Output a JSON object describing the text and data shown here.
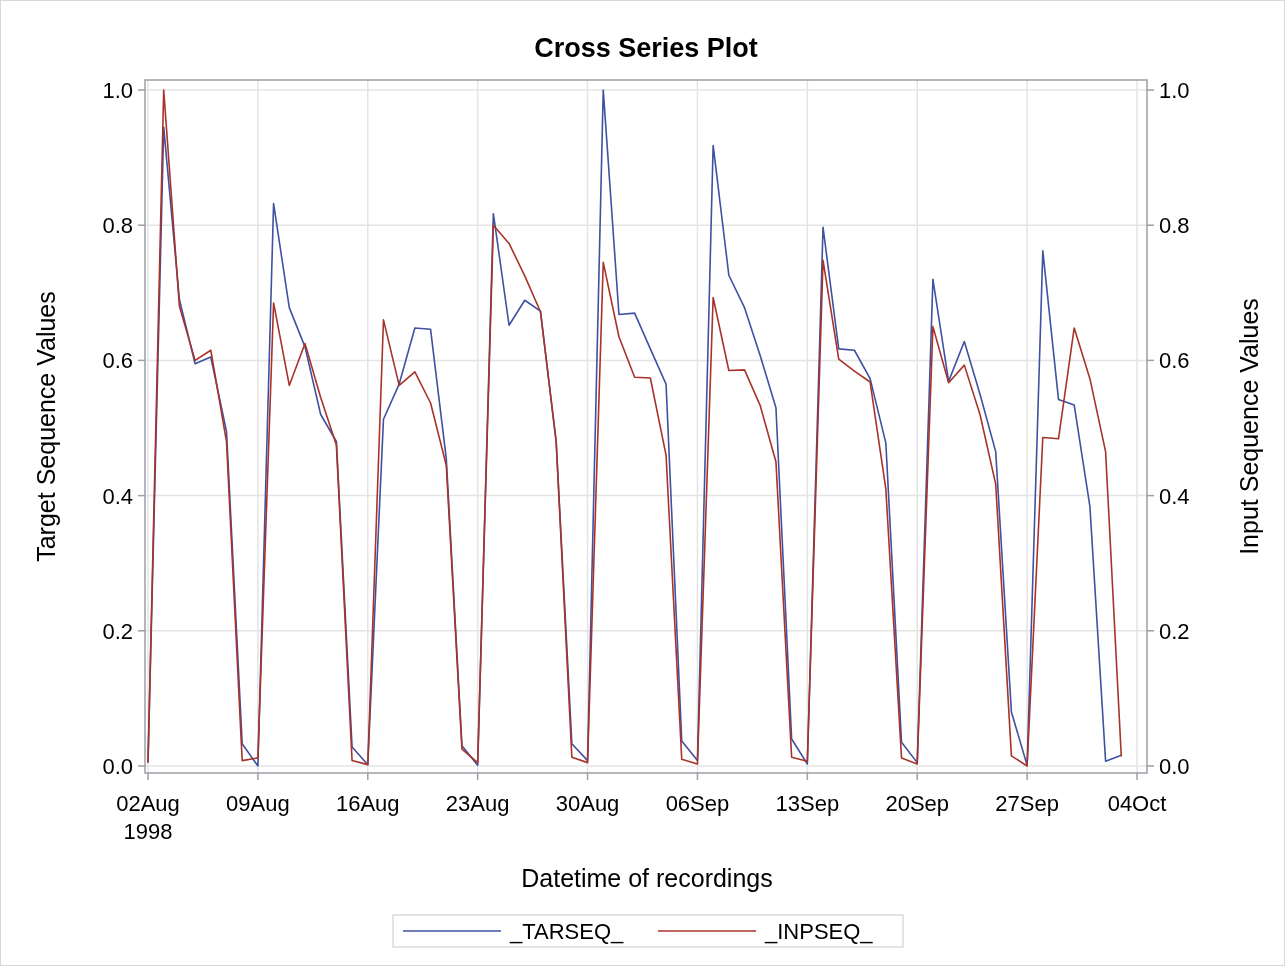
{
  "chart_data": {
    "type": "line",
    "title": "Cross Series Plot",
    "xlabel": "Datetime of recordings",
    "ylabel": "Target Sequence Values",
    "y2label": "Input Sequence Values",
    "x": [
      "1998-08-02",
      "1998-08-03",
      "1998-08-04",
      "1998-08-05",
      "1998-08-06",
      "1998-08-07",
      "1998-08-08",
      "1998-08-09",
      "1998-08-10",
      "1998-08-11",
      "1998-08-12",
      "1998-08-13",
      "1998-08-14",
      "1998-08-15",
      "1998-08-16",
      "1998-08-17",
      "1998-08-18",
      "1998-08-19",
      "1998-08-20",
      "1998-08-21",
      "1998-08-22",
      "1998-08-23",
      "1998-08-24",
      "1998-08-25",
      "1998-08-26",
      "1998-08-27",
      "1998-08-28",
      "1998-08-29",
      "1998-08-30",
      "1998-08-31",
      "1998-09-01",
      "1998-09-02",
      "1998-09-03",
      "1998-09-04",
      "1998-09-05",
      "1998-09-06",
      "1998-09-07",
      "1998-09-08",
      "1998-09-09",
      "1998-09-10",
      "1998-09-11",
      "1998-09-12",
      "1998-09-13",
      "1998-09-14",
      "1998-09-15",
      "1998-09-16",
      "1998-09-17",
      "1998-09-18",
      "1998-09-19",
      "1998-09-20",
      "1998-09-21",
      "1998-09-22",
      "1998-09-23",
      "1998-09-24",
      "1998-09-25",
      "1998-09-26",
      "1998-09-27",
      "1998-09-28",
      "1998-09-29",
      "1998-09-30",
      "1998-10-01",
      "1998-10-02",
      "1998-10-03"
    ],
    "series": [
      {
        "name": "_TARSEQ_",
        "color": "#3f51a0",
        "values": [
          0.005,
          0.945,
          0.69,
          0.595,
          0.605,
          0.495,
          0.033,
          0.0,
          0.832,
          0.678,
          0.62,
          0.52,
          0.48,
          0.028,
          0.002,
          0.513,
          0.565,
          0.648,
          0.646,
          0.455,
          0.03,
          0.001,
          0.817,
          0.652,
          0.689,
          0.673,
          0.48,
          0.033,
          0.008,
          1.0,
          0.668,
          0.67,
          0.617,
          0.565,
          0.037,
          0.008,
          0.918,
          0.726,
          0.678,
          0.607,
          0.53,
          0.04,
          0.003,
          0.797,
          0.617,
          0.615,
          0.573,
          0.478,
          0.035,
          0.005,
          0.72,
          0.569,
          0.628,
          0.55,
          0.465,
          0.08,
          0.001,
          0.762,
          0.542,
          0.534,
          0.384,
          0.007,
          0.016
        ]
      },
      {
        "name": "_INPSEQ_",
        "color": "#a8332a",
        "values": [
          0.005,
          1.0,
          0.68,
          0.6,
          0.615,
          0.48,
          0.008,
          0.012,
          0.685,
          0.563,
          0.625,
          0.545,
          0.475,
          0.008,
          0.002,
          0.66,
          0.563,
          0.583,
          0.537,
          0.445,
          0.025,
          0.005,
          0.8,
          0.773,
          0.725,
          0.672,
          0.48,
          0.013,
          0.005,
          0.745,
          0.635,
          0.575,
          0.574,
          0.46,
          0.01,
          0.003,
          0.693,
          0.585,
          0.586,
          0.533,
          0.45,
          0.013,
          0.007,
          0.748,
          0.602,
          0.584,
          0.568,
          0.41,
          0.012,
          0.003,
          0.65,
          0.567,
          0.593,
          0.52,
          0.417,
          0.015,
          0.0,
          0.486,
          0.484,
          0.648,
          0.573,
          0.465,
          0.014
        ]
      }
    ],
    "xlim": [
      "1998-08-02",
      "1998-10-04"
    ],
    "xticks": [
      {
        "value": "1998-08-02",
        "label": "02Aug 1998"
      },
      {
        "value": "1998-08-09",
        "label": "09Aug"
      },
      {
        "value": "1998-08-16",
        "label": "16Aug"
      },
      {
        "value": "1998-08-23",
        "label": "23Aug"
      },
      {
        "value": "1998-08-30",
        "label": "30Aug"
      },
      {
        "value": "1998-09-06",
        "label": "06Sep"
      },
      {
        "value": "1998-09-13",
        "label": "13Sep"
      },
      {
        "value": "1998-09-20",
        "label": "20Sep"
      },
      {
        "value": "1998-09-27",
        "label": "27Sep"
      },
      {
        "value": "1998-10-04",
        "label": "04Oct"
      }
    ],
    "ylim": [
      0,
      1
    ],
    "yticks": [
      {
        "value": 0,
        "label": "0.0"
      },
      {
        "value": 0.2,
        "label": "0.2"
      },
      {
        "value": 0.4,
        "label": "0.4"
      },
      {
        "value": 0.6,
        "label": "0.6"
      },
      {
        "value": 0.8,
        "label": "0.8"
      },
      {
        "value": 1,
        "label": "1.0"
      }
    ],
    "y2lim": [
      0,
      1
    ],
    "y2ticks": [
      {
        "value": 0,
        "label": "0.0"
      },
      {
        "value": 0.2,
        "label": "0.2"
      },
      {
        "value": 0.4,
        "label": "0.4"
      },
      {
        "value": 0.6,
        "label": "0.6"
      },
      {
        "value": 0.8,
        "label": "0.8"
      },
      {
        "value": 1,
        "label": "1.0"
      }
    ],
    "grid": true,
    "legend": "bottom",
    "line_style": "solid",
    "marker": "none"
  }
}
